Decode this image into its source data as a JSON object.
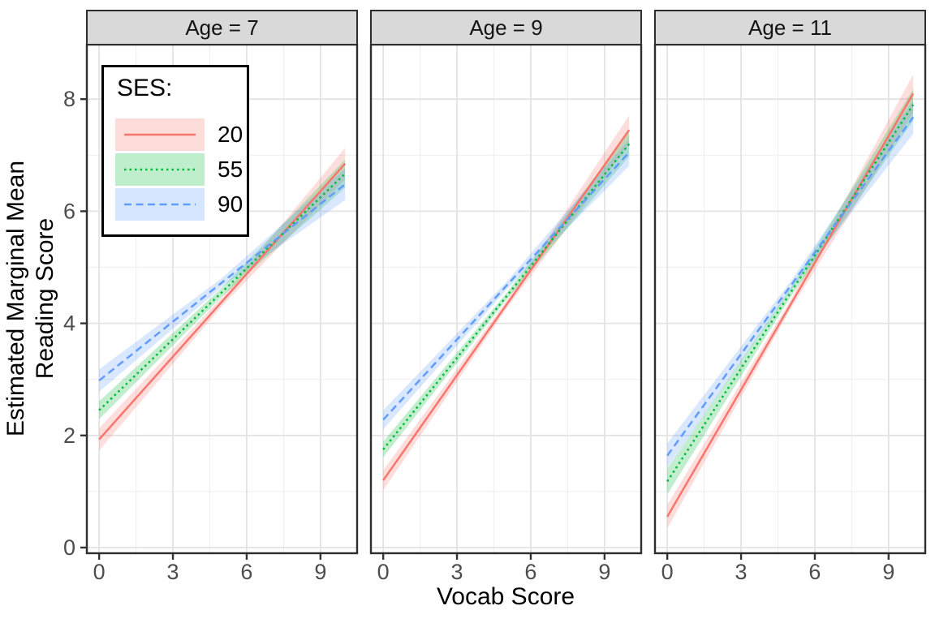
{
  "chart_data": {
    "type": "line",
    "title": "",
    "xlabel": "Vocab Score",
    "ylabel": "Estimated Marginal Mean Reading Score",
    "ylabel_lines": [
      "Estimated Marginal Mean",
      "Reading Score"
    ],
    "x_ticks": [
      0,
      3,
      6,
      9
    ],
    "y_ticks": [
      0,
      2,
      4,
      6,
      8
    ],
    "x_minor": [
      1.5,
      4.5,
      7.5
    ],
    "y_minor": [
      1,
      3,
      5,
      7
    ],
    "xlim": [
      -0.5,
      10.5
    ],
    "ylim": [
      -0.1,
      8.95
    ],
    "grid": "major+minor",
    "legend": {
      "title": "SES:",
      "position": "inside-top-left-first-panel"
    },
    "series_meta": [
      {
        "name": "20",
        "color": "#F8766D",
        "ribbon_opacity": 0.24,
        "linetype": "solid"
      },
      {
        "name": "55",
        "color": "#00BA38",
        "ribbon_opacity": 0.24,
        "linetype": "dotted"
      },
      {
        "name": "90",
        "color": "#619CFF",
        "ribbon_opacity": 0.24,
        "linetype": "dashed"
      }
    ],
    "facets": [
      {
        "label": "Age = 7",
        "series": [
          {
            "name": "20",
            "x": [
              0,
              10
            ],
            "y": [
              1.93,
              6.85
            ],
            "ci_half_width": [
              0.2,
              0.08,
              0.28
            ]
          },
          {
            "name": "55",
            "x": [
              0,
              10
            ],
            "y": [
              2.45,
              6.67
            ],
            "ci_half_width": [
              0.16,
              0.08,
              0.25
            ]
          },
          {
            "name": "90",
            "x": [
              0,
              10
            ],
            "y": [
              2.98,
              6.48
            ],
            "ci_half_width": [
              0.2,
              0.08,
              0.28
            ]
          }
        ]
      },
      {
        "label": "Age = 9",
        "series": [
          {
            "name": "20",
            "x": [
              0,
              10
            ],
            "y": [
              1.2,
              7.45
            ],
            "ci_half_width": [
              0.18,
              0.07,
              0.26
            ]
          },
          {
            "name": "55",
            "x": [
              0,
              10
            ],
            "y": [
              1.75,
              7.2
            ],
            "ci_half_width": [
              0.14,
              0.06,
              0.22
            ]
          },
          {
            "name": "90",
            "x": [
              0,
              10
            ],
            "y": [
              2.28,
              7.05
            ],
            "ci_half_width": [
              0.17,
              0.07,
              0.24
            ]
          }
        ]
      },
      {
        "label": "Age = 11",
        "series": [
          {
            "name": "20",
            "x": [
              0,
              10
            ],
            "y": [
              0.55,
              8.1
            ],
            "ci_half_width": [
              0.21,
              0.08,
              0.34
            ]
          },
          {
            "name": "55",
            "x": [
              0,
              10
            ],
            "y": [
              1.18,
              7.9
            ],
            "ci_half_width": [
              0.23,
              0.08,
              0.28
            ]
          },
          {
            "name": "90",
            "x": [
              0,
              10
            ],
            "y": [
              1.64,
              7.68
            ],
            "ci_half_width": [
              0.22,
              0.08,
              0.3
            ]
          }
        ]
      }
    ],
    "style_colors": {
      "strip_background": "#d9d9d9",
      "panel_border": "#2e2e2e",
      "grid_major": "#e3e3e3",
      "grid_minor": "#f0f0f0",
      "tick_mark": "#333333",
      "tick_text": "#4d4d4d"
    }
  }
}
